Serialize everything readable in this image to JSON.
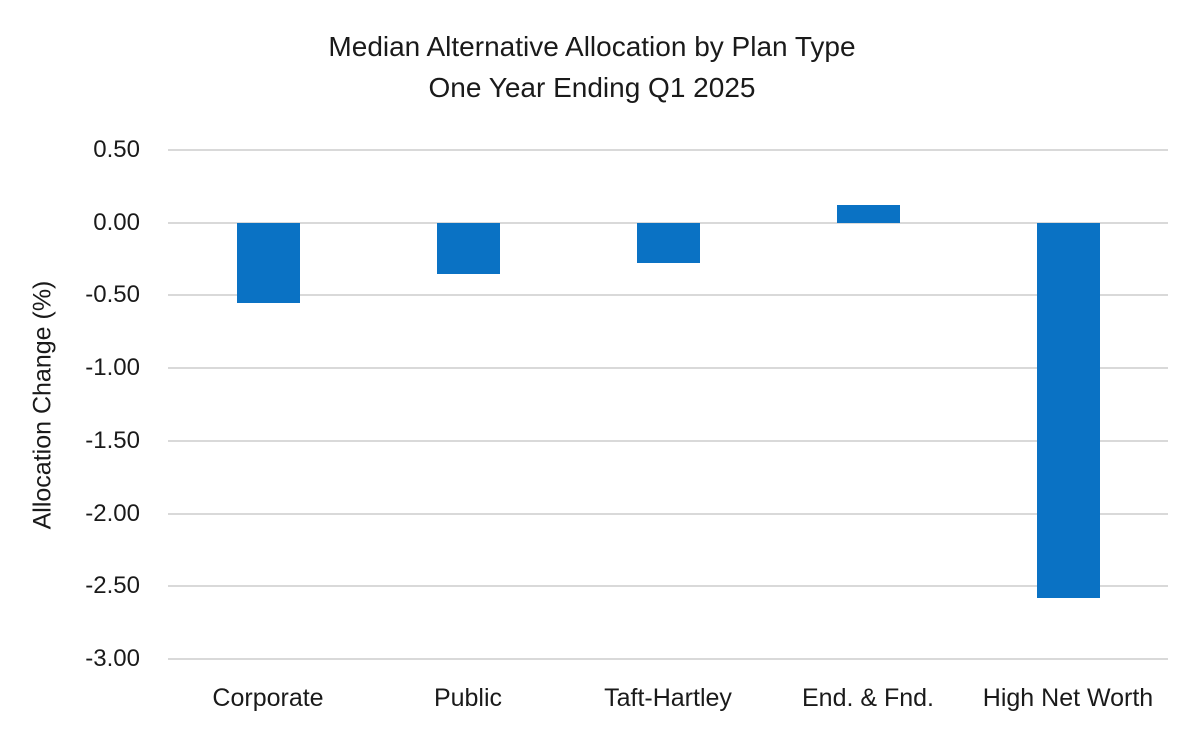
{
  "title": {
    "line1": "Median Alternative Allocation by Plan Type",
    "line2": "One Year Ending Q1 2025"
  },
  "chart_data": {
    "type": "bar",
    "title": "Median Alternative Allocation by Plan Type",
    "subtitle": "One Year Ending Q1 2025",
    "categories": [
      "Corporate",
      "Public",
      "Taft-Hartley",
      "End. & Fnd.",
      "High Net Worth"
    ],
    "values": [
      -0.55,
      -0.35,
      -0.28,
      0.12,
      -2.58
    ],
    "xlabel": "",
    "ylabel": "Allocation Change (%)",
    "ylim": [
      -3.0,
      0.5
    ],
    "ytick_step": 0.5,
    "ytick_labels": [
      "0.50",
      "0.00",
      "-0.50",
      "-1.00",
      "-1.50",
      "-2.00",
      "-2.50",
      "-3.00"
    ],
    "grid": true,
    "legend": false,
    "bar_color": "#0a72c4",
    "gridline_color": "#d9d9d9",
    "text_color": "#1a1a1a",
    "background_color": "#ffffff"
  }
}
